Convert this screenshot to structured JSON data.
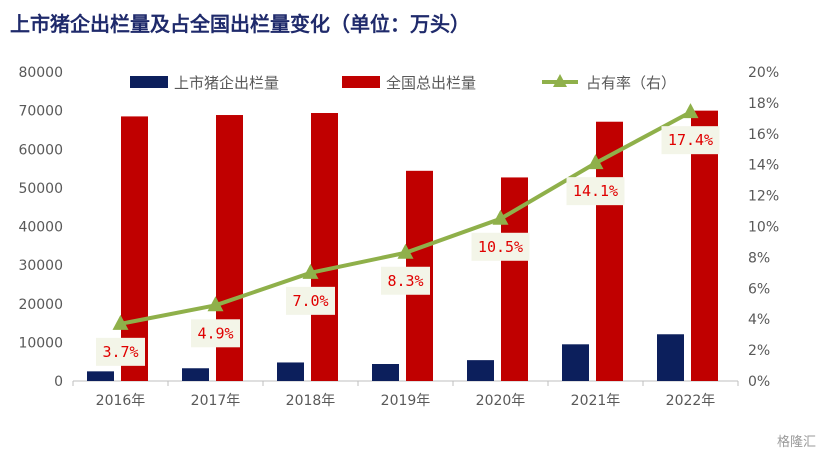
{
  "title": "上市猪企出栏量及占全国出栏量变化（单位：万头）",
  "watermark": "格隆汇",
  "chart_data": {
    "type": "bar",
    "categories": [
      "2016年",
      "2017年",
      "2018年",
      "2019年",
      "2020年",
      "2021年",
      "2022年"
    ],
    "series": [
      {
        "name": "上市猪企出栏量",
        "type": "bar",
        "axis": "left",
        "color": "#0c1f5c",
        "values": [
          2500,
          3300,
          4800,
          4400,
          5400,
          9500,
          12100
        ]
      },
      {
        "name": "全国总出栏量",
        "type": "bar",
        "axis": "left",
        "color": "#c00000",
        "values": [
          68502,
          68861,
          69382,
          54419,
          52704,
          67128,
          69995
        ]
      },
      {
        "name": "占有率（右）",
        "type": "line",
        "axis": "right",
        "color": "#8fb04a",
        "values": [
          3.7,
          4.9,
          7.0,
          8.3,
          10.5,
          14.1,
          17.4
        ],
        "labels": [
          "3.7%",
          "4.9%",
          "7.0%",
          "8.3%",
          "10.5%",
          "14.1%",
          "17.4%"
        ]
      }
    ],
    "y_left": {
      "min": 0,
      "max": 80000,
      "step": 10000,
      "ticks": [
        "0",
        "10000",
        "20000",
        "30000",
        "40000",
        "50000",
        "60000",
        "70000",
        "80000"
      ]
    },
    "y_right": {
      "min": 0,
      "max": 20,
      "step": 2,
      "ticks": [
        "0%",
        "2%",
        "4%",
        "6%",
        "8%",
        "10%",
        "12%",
        "14%",
        "16%",
        "18%",
        "20%"
      ]
    },
    "grid": false,
    "legend_position": "top"
  }
}
